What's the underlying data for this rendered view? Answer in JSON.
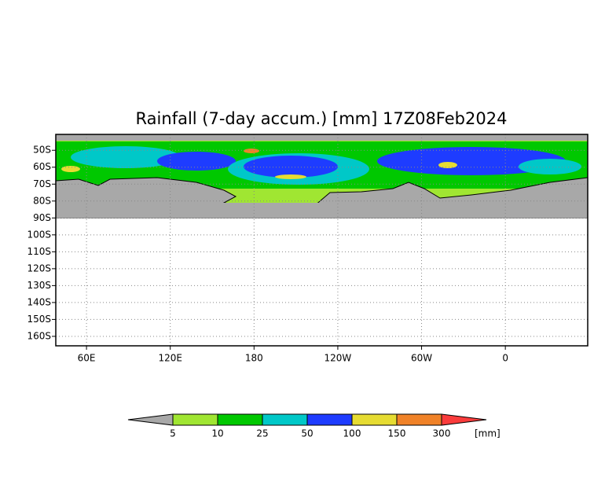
{
  "title": "Rainfall (7-day accum.) [mm] 17Z08Feb2024",
  "lat_range": [
    -40.6,
    -165.6
  ],
  "lon_range": [
    38,
    419
  ],
  "lat_ticks": [
    {
      "value": -50,
      "label": "50S"
    },
    {
      "value": -60,
      "label": "60S"
    },
    {
      "value": -70,
      "label": "70S"
    },
    {
      "value": -80,
      "label": "80S"
    },
    {
      "value": -90,
      "label": "90S"
    },
    {
      "value": -100,
      "label": "100S"
    },
    {
      "value": -110,
      "label": "110S"
    },
    {
      "value": -120,
      "label": "120S"
    },
    {
      "value": -130,
      "label": "130S"
    },
    {
      "value": -140,
      "label": "140S"
    },
    {
      "value": -150,
      "label": "150S"
    },
    {
      "value": -160,
      "label": "160S"
    }
  ],
  "lon_ticks": [
    {
      "value": 60,
      "label": "60E"
    },
    {
      "value": 120,
      "label": "120E"
    },
    {
      "value": 180,
      "label": "180"
    },
    {
      "value": 240,
      "label": "120W"
    },
    {
      "value": 300,
      "label": "60W"
    },
    {
      "value": 360,
      "label": "0"
    }
  ],
  "legend": {
    "levels": [
      5,
      10,
      25,
      50,
      100,
      150,
      300
    ],
    "colors": [
      "#a8a8a8",
      "#a0e632",
      "#00c800",
      "#00c8c8",
      "#1e3cff",
      "#e6dc32",
      "#f08228",
      "#fa3c3c"
    ],
    "unit": "[mm]"
  }
}
